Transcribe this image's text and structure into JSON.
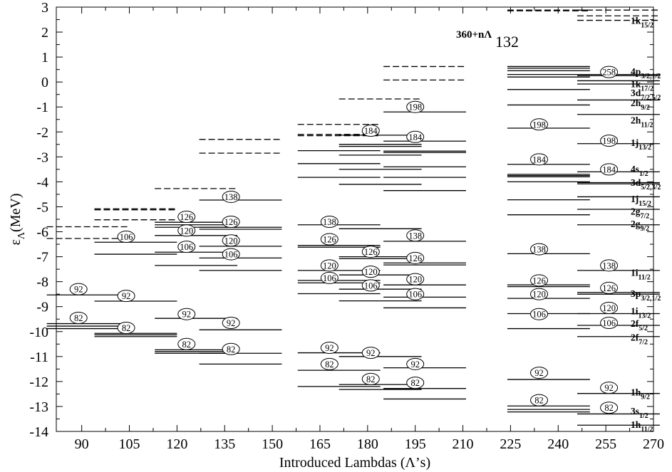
{
  "chart_data": {
    "type": "scatter",
    "title": "",
    "annotation": {
      "prefix": "360+nΛ",
      "main": "132"
    },
    "xlabel": "Introduced Lambdas (Λ’s)",
    "ylabel": {
      "base": "ε",
      "sub": "Λ",
      "rest": "(MeV)"
    },
    "xlim": [
      82,
      270
    ],
    "ylim": [
      -14,
      3
    ],
    "xticks": [
      90,
      105,
      120,
      135,
      150,
      165,
      180,
      195,
      210,
      225,
      240,
      255,
      270
    ],
    "yticks": [
      3,
      2,
      1,
      0,
      -1,
      -2,
      -3,
      -4,
      -5,
      -6,
      -7,
      -8,
      -9,
      -10,
      -11,
      -12,
      -13,
      -14
    ],
    "grid": false,
    "legend": "none",
    "columns": [
      {
        "x": 92,
        "bound": [
          -8.53,
          -9.68,
          -9.78,
          -9.88
        ],
        "unbound": [
          -5.8,
          -6.27
        ],
        "magic": [
          {
            "n": "92",
            "e": -8.3
          },
          {
            "n": "82",
            "e": -9.45
          }
        ]
      },
      {
        "x": 107,
        "bound": [
          -6.42,
          -6.9,
          -8.78,
          -10.07,
          -10.13,
          -10.2
        ],
        "unbound": [
          -5.08,
          -5.12,
          -5.52
        ],
        "magic": [
          {
            "n": "106",
            "e": -6.2
          },
          {
            "n": "92",
            "e": -8.57
          },
          {
            "n": "82",
            "e": -9.85
          }
        ]
      },
      {
        "x": 126,
        "bound": [
          -5.62,
          -5.72,
          -5.82,
          -6.15,
          -6.82,
          -7.35,
          -9.47,
          -10.73,
          -10.8,
          -10.87
        ],
        "unbound": [
          -4.27
        ],
        "magic": [
          {
            "n": "126",
            "e": -5.4
          },
          {
            "n": "120",
            "e": -5.95
          },
          {
            "n": "106",
            "e": -6.6
          },
          {
            "n": "92",
            "e": -9.3
          },
          {
            "n": "82",
            "e": -10.5
          }
        ]
      },
      {
        "x": 140,
        "bound": [
          -4.73,
          -5.82,
          -5.9,
          -6.58,
          -7.05,
          -7.55,
          -9.93,
          -10.87,
          -11.3
        ],
        "unbound": [
          -2.3,
          -2.85
        ],
        "magic": [
          {
            "n": "138",
            "e": -4.6
          },
          {
            "n": "126",
            "e": -5.6
          },
          {
            "n": "120",
            "e": -6.35
          },
          {
            "n": "106",
            "e": -6.9
          },
          {
            "n": "92",
            "e": -9.65
          },
          {
            "n": "82",
            "e": -10.7
          }
        ]
      },
      {
        "x": 171,
        "bound": [
          -2.75,
          -3.27,
          -3.82,
          -5.72,
          -6.55,
          -6.62,
          -7.55,
          -7.95,
          -8.05,
          -8.48,
          -10.85,
          -11.55,
          -12.2
        ],
        "unbound": [
          -1.7,
          -2.1,
          -2.15
        ],
        "magic": [
          {
            "n": "138",
            "e": -5.6
          },
          {
            "n": "126",
            "e": -6.3
          },
          {
            "n": "120",
            "e": -7.35
          },
          {
            "n": "106",
            "e": -7.85
          },
          {
            "n": "92",
            "e": -10.65
          },
          {
            "n": "82",
            "e": -11.3
          }
        ]
      },
      {
        "x": 184,
        "bound": [
          -2.13,
          -2.5,
          -2.58,
          -2.93,
          -3.5,
          -4.1,
          -5.88,
          -7.0,
          -7.08,
          -7.73,
          -8.3,
          -8.77,
          -11.0,
          -12.12,
          -12.32
        ],
        "unbound": [
          -0.68
        ],
        "magic": [
          {
            "n": "184",
            "e": -1.95
          },
          {
            "n": "126",
            "e": -6.8
          },
          {
            "n": "120",
            "e": -7.6
          },
          {
            "n": "106",
            "e": -8.15
          },
          {
            "n": "92",
            "e": -10.85
          },
          {
            "n": "82",
            "e": -11.9
          }
        ]
      },
      {
        "x": 198,
        "bound": [
          -1.2,
          -2.37,
          -2.77,
          -2.83,
          -3.4,
          -3.82,
          -4.35,
          -6.38,
          -7.25,
          -7.33,
          -8.13,
          -8.62,
          -9.05,
          -11.45,
          -12.28,
          -12.7
        ],
        "unbound": [
          0.62,
          0.08
        ],
        "magic": [
          {
            "n": "198",
            "e": -1.0
          },
          {
            "n": "184",
            "e": -2.2
          },
          {
            "n": "138",
            "e": -6.15
          },
          {
            "n": "126",
            "e": -7.05
          },
          {
            "n": "120",
            "e": -7.9
          },
          {
            "n": "106",
            "e": -8.5
          },
          {
            "n": "92",
            "e": -11.3
          },
          {
            "n": "82",
            "e": -12.05
          }
        ]
      },
      {
        "x": 237,
        "bound": [
          0.62,
          0.55,
          0.45,
          0.3,
          0.2,
          -0.3,
          -0.92,
          -1.85,
          -3.3,
          -3.7,
          -3.75,
          -3.8,
          -4.0,
          -4.72,
          -5.32,
          -6.88,
          -8.13,
          -8.2,
          -8.67,
          -9.28,
          -9.88,
          -11.92,
          -12.98,
          -13.12,
          -13.22
        ],
        "unbound": [
          2.88,
          2.85
        ],
        "magic": [
          {
            "n": "198",
            "e": -1.7
          },
          {
            "n": "184",
            "e": -3.1
          },
          {
            "n": "138",
            "e": -6.7
          },
          {
            "n": "126",
            "e": -7.95
          },
          {
            "n": "120",
            "e": -8.5
          },
          {
            "n": "106",
            "e": -9.3
          },
          {
            "n": "92",
            "e": -11.65
          },
          {
            "n": "82",
            "e": -12.75
          }
        ]
      },
      {
        "x": 259,
        "bound": [
          0.3,
          0.25,
          0.05,
          -0.08,
          -0.72,
          -1.3,
          -2.47,
          -3.6,
          -4.03,
          -4.08,
          -4.6,
          -5.1,
          -5.72,
          -7.55,
          -8.43,
          -8.5,
          -9.28,
          -9.75,
          -10.2,
          -12.48,
          -13.3,
          -13.75
        ],
        "unbound": [
          2.88,
          2.65,
          2.47
        ],
        "magic": [
          {
            "n": "258",
            "e": 0.4
          },
          {
            "n": "198",
            "e": -2.35
          },
          {
            "n": "184",
            "e": -3.5
          },
          {
            "n": "138",
            "e": -7.35
          },
          {
            "n": "126",
            "e": -8.25
          },
          {
            "n": "120",
            "e": -9.05
          },
          {
            "n": "106",
            "e": -9.65
          },
          {
            "n": "92",
            "e": -12.25
          },
          {
            "n": "82",
            "e": -13.05
          }
        ]
      }
    ],
    "orbital_labels": [
      {
        "main": "1k",
        "sub": "15/2",
        "e": 2.45
      },
      {
        "main": "4p",
        "sub": "3/2,1/2",
        "e": 0.4
      },
      {
        "main": "1k",
        "sub": "17/2",
        "e": -0.1
      },
      {
        "main": "3d",
        "sub": "7/2,5/2",
        "e": -0.45
      },
      {
        "main": "2h",
        "sub": "9/2",
        "e": -0.85
      },
      {
        "main": "2h",
        "sub": "11/2",
        "e": -1.55
      },
      {
        "main": "1j",
        "sub": "13/2",
        "e": -2.45
      },
      {
        "main": "4s",
        "sub": "1/2",
        "e": -3.5
      },
      {
        "main": "3d",
        "sub": "5/2,3/2",
        "e": -4.05
      },
      {
        "main": "1j",
        "sub": "15/2",
        "e": -4.7
      },
      {
        "main": "2g",
        "sub": "7/2",
        "e": -5.2
      },
      {
        "main": "2g",
        "sub": "9/2",
        "e": -5.7
      },
      {
        "main": "1i",
        "sub": "11/2",
        "e": -7.65
      },
      {
        "main": "3p",
        "sub": "3/2,1/2",
        "e": -8.5
      },
      {
        "main": "1i",
        "sub": "13/2",
        "e": -9.2
      },
      {
        "main": "2f",
        "sub": "5/2",
        "e": -9.7
      },
      {
        "main": "2f",
        "sub": "7/2",
        "e": -10.25
      },
      {
        "main": "1h",
        "sub": "9/2",
        "e": -12.45
      },
      {
        "main": "3s",
        "sub": "1/2",
        "e": -13.2
      },
      {
        "main": "1h",
        "sub": "11/2",
        "e": -13.75
      }
    ]
  }
}
